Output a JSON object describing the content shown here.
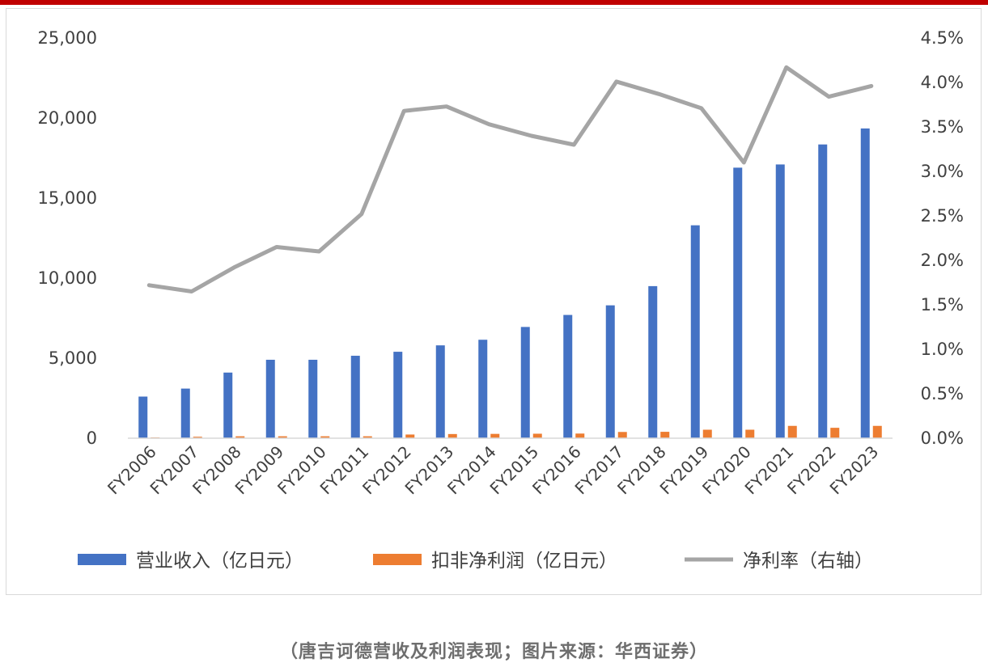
{
  "caption": "（唐吉诃德营收及利润表现；图片来源：华西证券）",
  "colors": {
    "revenue": "#4472c4",
    "profit": "#ed7d31",
    "margin": "#a5a5a5",
    "top_rule": "#c00000"
  },
  "chart_data": {
    "type": "bar",
    "categories": [
      "FY2006",
      "FY2007",
      "FY2008",
      "FY2009",
      "FY2010",
      "FY2011",
      "FY2012",
      "FY2013",
      "FY2014",
      "FY2015",
      "FY2016",
      "FY2017",
      "FY2018",
      "FY2019",
      "FY2020",
      "FY2021",
      "FY2022",
      "FY2023"
    ],
    "series": [
      {
        "name": "营业收入（亿日元）",
        "type": "bar",
        "axis": "left",
        "values": [
          2600,
          3100,
          4100,
          4900,
          4900,
          5150,
          5400,
          5800,
          6150,
          6950,
          7700,
          8300,
          9500,
          13300,
          16900,
          17100,
          18350,
          19350
        ]
      },
      {
        "name": "扣非净利润（亿日元）",
        "type": "bar",
        "axis": "left",
        "values": [
          50,
          90,
          120,
          120,
          120,
          120,
          230,
          260,
          270,
          280,
          290,
          390,
          400,
          530,
          530,
          770,
          650,
          770
        ]
      },
      {
        "name": "净利率（右轴）",
        "type": "line",
        "axis": "right",
        "values": [
          1.72,
          1.65,
          1.92,
          2.15,
          2.1,
          2.52,
          3.68,
          3.73,
          3.53,
          3.4,
          3.3,
          4.01,
          3.87,
          3.71,
          3.1,
          4.17,
          3.84,
          3.96
        ]
      }
    ],
    "y_left": {
      "min": 0,
      "max": 25000,
      "ticks": [
        "0",
        "5,000",
        "10,000",
        "15,000",
        "20,000",
        "25,000"
      ]
    },
    "y_right": {
      "min": 0,
      "max": 4.5,
      "ticks": [
        "0.0%",
        "0.5%",
        "1.0%",
        "1.5%",
        "2.0%",
        "2.5%",
        "3.0%",
        "3.5%",
        "4.0%",
        "4.5%"
      ]
    },
    "grid": false,
    "legend": "bottom"
  }
}
